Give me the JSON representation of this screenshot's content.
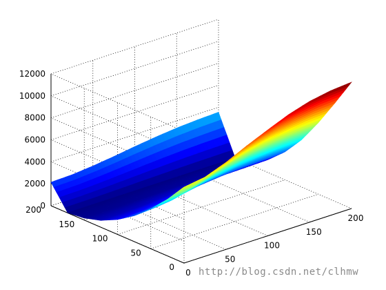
{
  "chart_data": {
    "type": "surface",
    "title": "",
    "xlabel": "",
    "ylabel": "",
    "zlabel": "",
    "grid": true,
    "colormap": "jet",
    "x_ticks": [
      0,
      50,
      100,
      150,
      200
    ],
    "y_ticks": [
      0,
      50,
      100,
      150,
      200
    ],
    "z_ticks": [
      0,
      2000,
      4000,
      6000,
      8000,
      10000,
      12000
    ],
    "xlim": [
      0,
      200
    ],
    "ylim": [
      0,
      200
    ],
    "zlim": [
      0,
      12000
    ],
    "surface": {
      "x": [
        0,
        25,
        50,
        75,
        100,
        125,
        150,
        175,
        200
      ],
      "y": [
        0,
        25,
        50,
        75,
        100,
        125,
        150,
        175,
        200
      ],
      "z_rows_by_y": [
        [
          6920,
          7200,
          7920,
          8820,
          9640,
          10420,
          11000,
          11340,
          11500
        ],
        [
          5150,
          5400,
          5950,
          6700,
          7400,
          8050,
          8500,
          8820,
          8950
        ],
        [
          3620,
          3800,
          4250,
          4800,
          5300,
          5800,
          6150,
          6380,
          6500
        ],
        [
          2350,
          2480,
          2780,
          3150,
          3500,
          3850,
          4080,
          4250,
          4300
        ],
        [
          1350,
          1420,
          1600,
          1820,
          2050,
          2250,
          2400,
          2480,
          2550
        ],
        [
          620,
          650,
          720,
          850,
          950,
          1050,
          1120,
          1160,
          1200
        ],
        [
          180,
          190,
          210,
          240,
          280,
          310,
          330,
          340,
          350
        ],
        [
          20,
          20,
          25,
          30,
          35,
          40,
          45,
          45,
          50
        ],
        [
          2140,
          2200,
          2380,
          2620,
          2900,
          3150,
          3350,
          3480,
          3550
        ]
      ]
    }
  },
  "watermark": "http://blog.csdn.net/clhmw"
}
